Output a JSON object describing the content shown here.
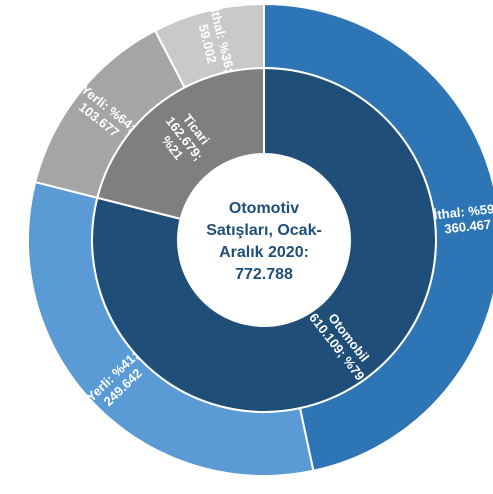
{
  "chart_data": {
    "type": "sunburst",
    "title": "",
    "center_label": [
      "Otomotiv",
      "Satışları, Ocak-",
      "Aralık 2020:",
      "772.788"
    ],
    "total": 772788,
    "inner_ring": [
      {
        "name": "Otomobil",
        "value": 610109,
        "share_pct": 79,
        "label": [
          "Otomobil",
          "610.109; %79"
        ],
        "color": "#1F4E79"
      },
      {
        "name": "Ticari",
        "value": 162679,
        "share_pct": 21,
        "label": [
          "Ticari",
          "162.679;",
          "%21"
        ],
        "color": "#7F7F7F"
      }
    ],
    "outer_ring": [
      {
        "parent": "Otomobil",
        "name": "İthal",
        "value": 360467,
        "share_pct": 59,
        "label": [
          "İthal: %59;",
          "360.467"
        ],
        "color": "#2E75B6"
      },
      {
        "parent": "Otomobil",
        "name": "Yerli",
        "value": 249642,
        "share_pct": 41,
        "label": [
          "Yerli: %41;",
          "249.642"
        ],
        "color": "#5B9BD5"
      },
      {
        "parent": "Ticari",
        "name": "Yerli",
        "value": 103677,
        "share_pct": 64,
        "label": [
          "Yerli: %64;",
          "103.677"
        ],
        "color": "#A5A5A5"
      },
      {
        "parent": "Ticari",
        "name": "İthal",
        "value": 59002,
        "share_pct": 36,
        "label": [
          "İthal: %36;",
          "59.002"
        ],
        "color": "#C9C9C9"
      }
    ]
  }
}
